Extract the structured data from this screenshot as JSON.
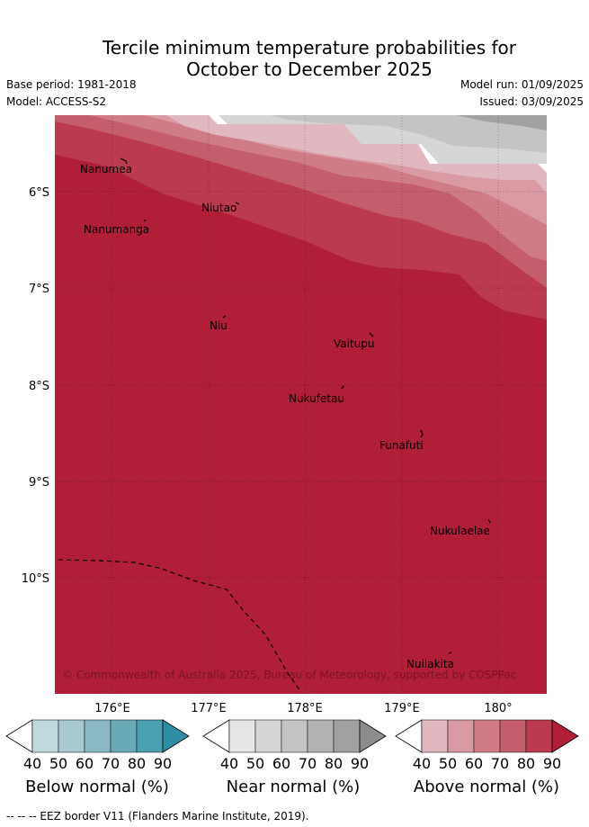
{
  "title": {
    "line1": "Tercile minimum temperature probabilities for",
    "line2": "October to December 2025"
  },
  "meta": {
    "base_period": "Base period: 1981-2018",
    "model": "Model: ACCESS-S2",
    "model_run": "Model run: 01/09/2025",
    "issued": "Issued: 03/09/2025"
  },
  "map": {
    "lat_labels": [
      "6°S",
      "7°S",
      "8°S",
      "9°S",
      "10°S"
    ],
    "lon_labels": [
      "176°E",
      "177°E",
      "178°E",
      "179°E",
      "180°"
    ],
    "places": [
      "Nanumea",
      "Nanumanga",
      "Niutao",
      "Niu",
      "Vaitupu",
      "Nukufetau",
      "Funafuti",
      "Nukulaelae",
      "Nuilakita"
    ],
    "credit": "© Commonwealth of Australia 2025, Bureau of Meteorology, supported by COSPPac",
    "eez_style": "dashed black"
  },
  "colorbars": [
    {
      "label": "Below normal (%)",
      "ticks": [
        "40",
        "50",
        "60",
        "70",
        "80",
        "90"
      ],
      "colors": [
        "#c0d9de",
        "#a7c9cf",
        "#8ab9c3",
        "#6aaab7",
        "#4aa0b0",
        "#2d8ea3"
      ]
    },
    {
      "label": "Near normal (%)",
      "ticks": [
        "40",
        "50",
        "60",
        "70",
        "80",
        "90"
      ],
      "colors": [
        "#e5e5e5",
        "#d6d6d6",
        "#c4c4c4",
        "#b3b3b3",
        "#a1a1a1",
        "#8c8c8c"
      ]
    },
    {
      "label": "Above normal (%)",
      "ticks": [
        "40",
        "50",
        "60",
        "70",
        "80",
        "90"
      ],
      "colors": [
        "#e2b8c0",
        "#d99aa3",
        "#d07c86",
        "#c45e6c",
        "#bb3a4e",
        "#b01e37"
      ]
    }
  ],
  "footer": "--  --  -- EEZ border V11 (Flanders Marine Institute, 2019)."
}
